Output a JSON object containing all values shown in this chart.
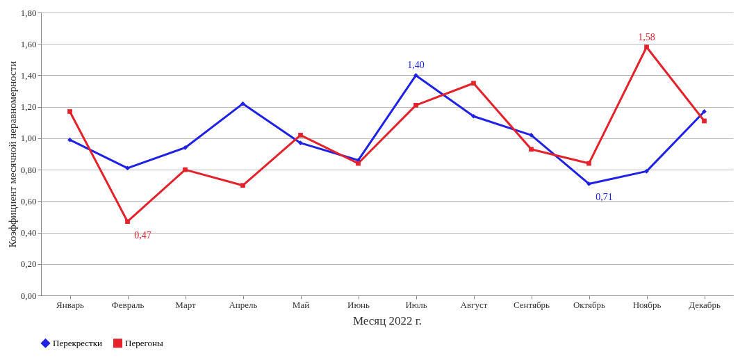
{
  "chart_data": {
    "type": "line",
    "xlabel": "Месяц 2022 г.",
    "ylabel": "Коэффициент месячной неравномерности",
    "categories": [
      "Январь",
      "Февраль",
      "Март",
      "Апрель",
      "Май",
      "Июнь",
      "Июль",
      "Август",
      "Сентябрь",
      "Октябрь",
      "Ноябрь",
      "Декабрь"
    ],
    "ylim": [
      0,
      1.8
    ],
    "yticks": [
      {
        "value": 0,
        "label": "0,00"
      },
      {
        "value": 0.2,
        "label": "0,20"
      },
      {
        "value": 0.4,
        "label": "0,40"
      },
      {
        "value": 0.6,
        "label": "0,60"
      },
      {
        "value": 0.8,
        "label": "0,80"
      },
      {
        "value": 1,
        "label": "1,00"
      },
      {
        "value": 1.2,
        "label": "1,20"
      },
      {
        "value": 1.4,
        "label": "1,40"
      },
      {
        "value": 1.6,
        "label": "1,60"
      },
      {
        "value": 1.8,
        "label": "1,80"
      }
    ],
    "grid": "y",
    "legend": "bottom",
    "line_style": "solid",
    "series": [
      {
        "name": "Перекрестки",
        "color": "#1f22e6",
        "marker": "diamond",
        "values": [
          0.99,
          0.81,
          0.94,
          1.22,
          0.97,
          0.86,
          1.4,
          1.14,
          1.02,
          0.71,
          0.79,
          1.17
        ],
        "value_labels": [
          null,
          null,
          null,
          null,
          null,
          null,
          "1,40",
          null,
          null,
          "0,71",
          null,
          null
        ]
      },
      {
        "name": "Перегоны",
        "color": "#e3222b",
        "marker": "square",
        "values": [
          1.17,
          0.47,
          0.8,
          0.7,
          1.02,
          0.84,
          1.21,
          1.35,
          0.93,
          0.84,
          1.58,
          1.11
        ],
        "value_labels": [
          null,
          "0,47",
          null,
          null,
          null,
          null,
          null,
          null,
          null,
          null,
          "1,58",
          null
        ]
      }
    ]
  }
}
